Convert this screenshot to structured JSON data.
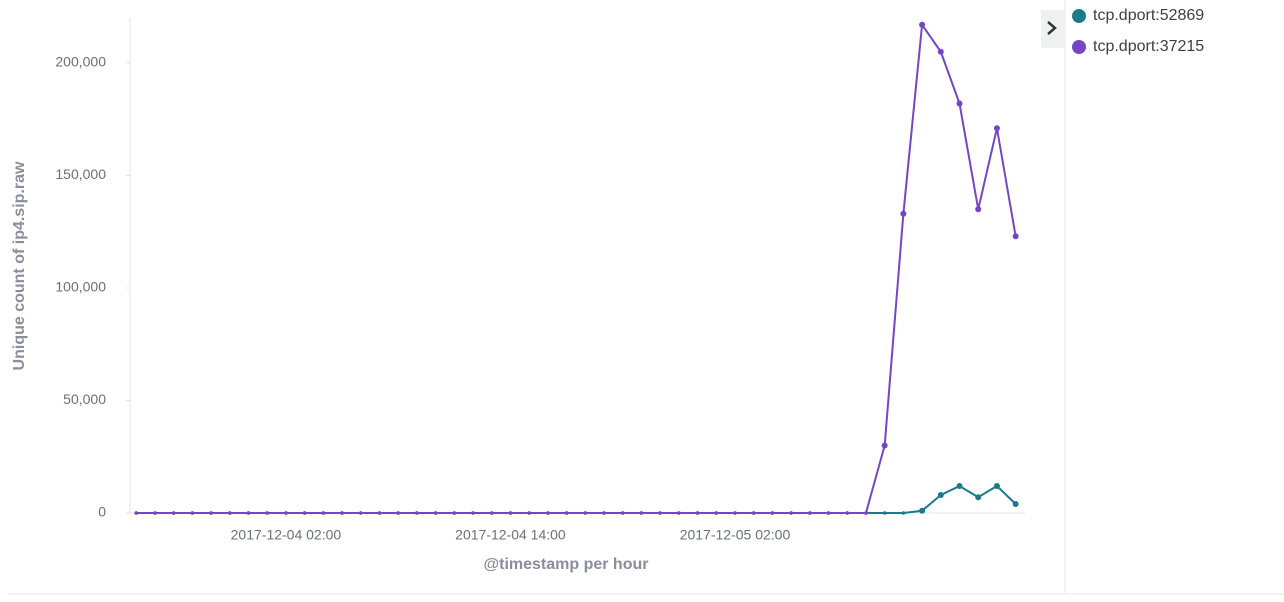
{
  "chart_data": {
    "type": "line",
    "x_label": "@timestamp per hour",
    "y_label": "Unique count of ip4.sip.raw",
    "x": [
      "2017-12-03 18:00",
      "2017-12-03 19:00",
      "2017-12-03 20:00",
      "2017-12-03 21:00",
      "2017-12-03 22:00",
      "2017-12-03 23:00",
      "2017-12-04 00:00",
      "2017-12-04 01:00",
      "2017-12-04 02:00",
      "2017-12-04 03:00",
      "2017-12-04 04:00",
      "2017-12-04 05:00",
      "2017-12-04 06:00",
      "2017-12-04 07:00",
      "2017-12-04 08:00",
      "2017-12-04 09:00",
      "2017-12-04 10:00",
      "2017-12-04 11:00",
      "2017-12-04 12:00",
      "2017-12-04 13:00",
      "2017-12-04 14:00",
      "2017-12-04 15:00",
      "2017-12-04 16:00",
      "2017-12-04 17:00",
      "2017-12-04 18:00",
      "2017-12-04 19:00",
      "2017-12-04 20:00",
      "2017-12-04 21:00",
      "2017-12-04 22:00",
      "2017-12-04 23:00",
      "2017-12-05 00:00",
      "2017-12-05 01:00",
      "2017-12-05 02:00",
      "2017-12-05 03:00",
      "2017-12-05 04:00",
      "2017-12-05 05:00",
      "2017-12-05 06:00",
      "2017-12-05 07:00",
      "2017-12-05 08:00",
      "2017-12-05 09:00",
      "2017-12-05 10:00",
      "2017-12-05 11:00",
      "2017-12-05 12:00",
      "2017-12-05 13:00",
      "2017-12-05 14:00",
      "2017-12-05 15:00",
      "2017-12-05 16:00",
      "2017-12-05 17:00"
    ],
    "series": [
      {
        "name": "tcp.dport:52869",
        "color": "#1b7b8a",
        "values": [
          0,
          0,
          0,
          0,
          0,
          0,
          0,
          0,
          0,
          0,
          0,
          0,
          0,
          0,
          0,
          0,
          0,
          0,
          0,
          0,
          0,
          0,
          0,
          0,
          0,
          0,
          0,
          0,
          0,
          0,
          0,
          0,
          0,
          0,
          0,
          0,
          0,
          0,
          0,
          0,
          0,
          0,
          1000,
          8000,
          12000,
          7000,
          12000,
          4000
        ]
      },
      {
        "name": "tcp.dport:37215",
        "color": "#7446c6",
        "values": [
          0,
          0,
          0,
          0,
          0,
          0,
          0,
          0,
          0,
          0,
          0,
          0,
          0,
          0,
          0,
          0,
          0,
          0,
          0,
          0,
          0,
          0,
          0,
          0,
          0,
          0,
          0,
          0,
          0,
          0,
          0,
          0,
          0,
          0,
          0,
          0,
          0,
          0,
          0,
          0,
          30000,
          133000,
          217000,
          205000,
          182000,
          135000,
          171000,
          123000
        ]
      }
    ],
    "xlim": [
      "2017-12-03 17:40",
      "2017-12-05 17:30"
    ],
    "xticks": [
      "2017-12-04 02:00",
      "2017-12-04 14:00",
      "2017-12-05 02:00"
    ],
    "ylim": [
      0,
      220000
    ],
    "yticks": [
      0,
      {
        "value": 50000,
        "label": "50,000"
      },
      {
        "value": 100000,
        "label": "100,000"
      },
      {
        "value": 150000,
        "label": "150,000"
      },
      {
        "value": 200000,
        "label": "200,000"
      }
    ]
  }
}
